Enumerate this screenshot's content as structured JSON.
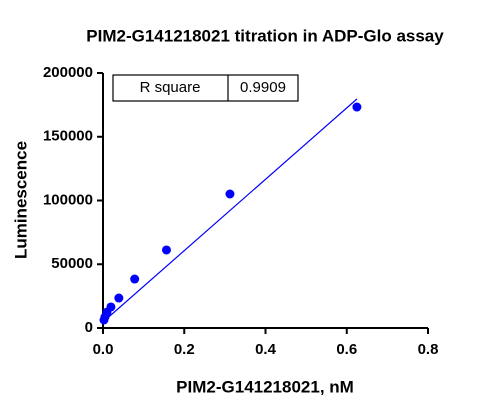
{
  "chart_data": {
    "type": "scatter",
    "title": "PIM2-G141218021 titration in ADP-Glo assay",
    "x_label": "PIM2-G141218021, nM",
    "y_label": "Luminescence",
    "x": [
      0.625,
      0.3125,
      0.15625,
      0.078,
      0.039,
      0.0195,
      0.0098,
      0.0049,
      0.0024
    ],
    "values": [
      173300,
      105100,
      61200,
      38400,
      23500,
      16500,
      12500,
      8600,
      6300
    ],
    "color": "#0000ff",
    "fit": {
      "x": [
        0,
        0.625
      ],
      "values": [
        4700,
        179600
      ],
      "color": "#0000ff"
    },
    "stats_table": {
      "label": "R square",
      "value": 0.9909
    },
    "xlim": [
      0,
      0.8
    ],
    "xticks": [
      {
        "value": 0,
        "label": "0.0"
      },
      0.2,
      0.4,
      0.6,
      0.8
    ],
    "ylim": [
      0,
      200000
    ],
    "yticks": [
      0,
      50000,
      100000,
      150000,
      200000
    ]
  }
}
